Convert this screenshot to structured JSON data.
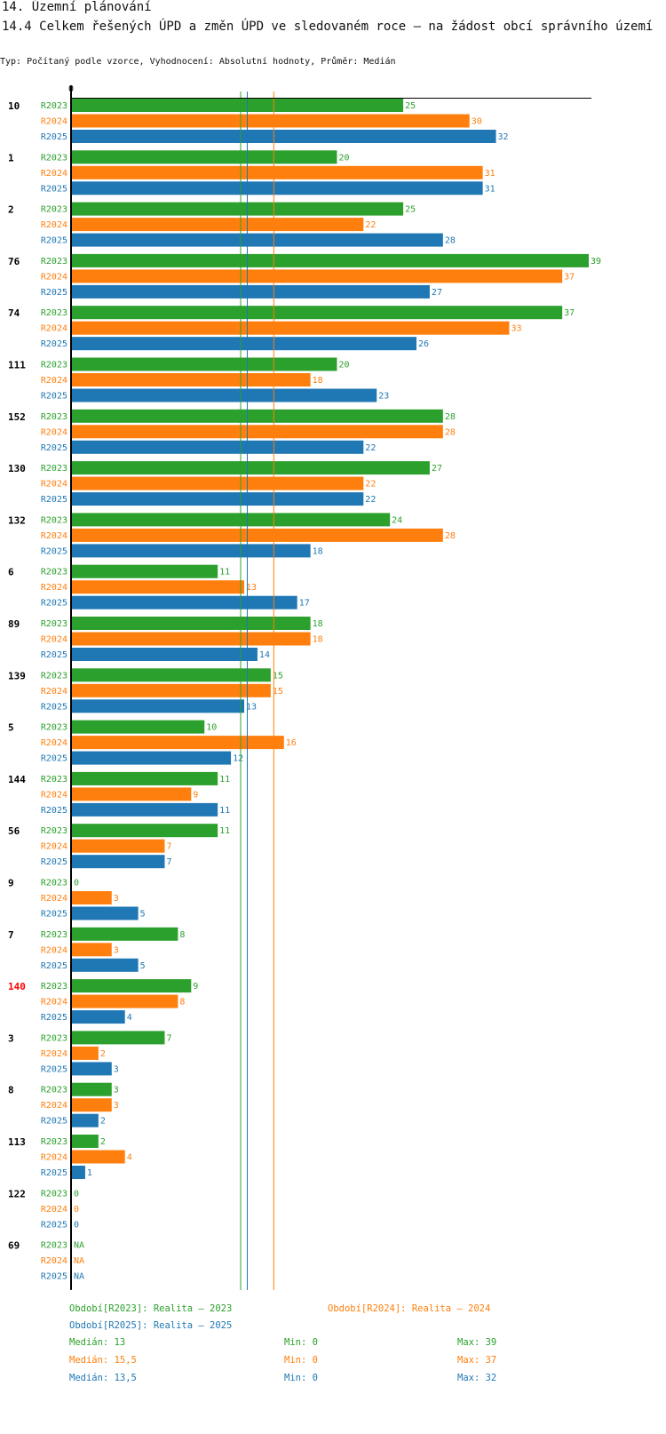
{
  "section_title": "14. Územní plánování",
  "chart_title": "14.4 Celkem řešených ÚPD a změn ÚPD ve sledovaném roce – na žádost obcí správního území",
  "subtitle": "Typ: Počítaný podle vzorce, Vyhodnocení: Absolutní hodnoty, Průměr: Medián",
  "colors": {
    "R2023": "#2ca02c",
    "R2024": "#ff7f0e",
    "R2025": "#1f77b4",
    "highlight": "#ff0000"
  },
  "chart_data": {
    "type": "bar",
    "orientation": "horizontal",
    "x_tick_label": "0",
    "xlim": [
      0,
      39
    ],
    "series_names": [
      "R2023",
      "R2024",
      "R2025"
    ],
    "categories": [
      "10",
      "1",
      "2",
      "76",
      "74",
      "111",
      "152",
      "130",
      "132",
      "6",
      "89",
      "139",
      "5",
      "144",
      "56",
      "9",
      "7",
      "140",
      "3",
      "8",
      "113",
      "122",
      "69"
    ],
    "highlighted_category": "140",
    "series": [
      {
        "name": "R2023",
        "values": [
          25,
          20,
          25,
          39,
          37,
          20,
          28,
          27,
          24,
          11,
          18,
          15,
          10,
          11,
          11,
          0,
          8,
          9,
          7,
          3,
          2,
          0,
          null
        ]
      },
      {
        "name": "R2024",
        "values": [
          30,
          31,
          22,
          37,
          33,
          18,
          28,
          22,
          28,
          13,
          18,
          15,
          16,
          9,
          7,
          3,
          3,
          8,
          2,
          3,
          4,
          0,
          null
        ]
      },
      {
        "name": "R2025",
        "values": [
          32,
          31,
          28,
          27,
          26,
          23,
          22,
          22,
          18,
          17,
          14,
          13,
          12,
          11,
          7,
          5,
          5,
          4,
          3,
          2,
          1,
          0,
          null
        ]
      }
    ],
    "na_label": "NA",
    "medians": {
      "R2023": 13,
      "R2024": 15.5,
      "R2025": 13.5
    }
  },
  "legend": {
    "periods": [
      "Období[R2023]: Realita – 2023",
      "Období[R2024]: Realita – 2024",
      "Období[R2025]: Realita – 2025"
    ],
    "stats": [
      {
        "median": "Medián: 13",
        "min": "Min: 0",
        "max": "Max: 39"
      },
      {
        "median": "Medián: 15,5",
        "min": "Min: 0",
        "max": "Max: 37"
      },
      {
        "median": "Medián: 13,5",
        "min": "Min: 0",
        "max": "Max: 32"
      }
    ]
  }
}
